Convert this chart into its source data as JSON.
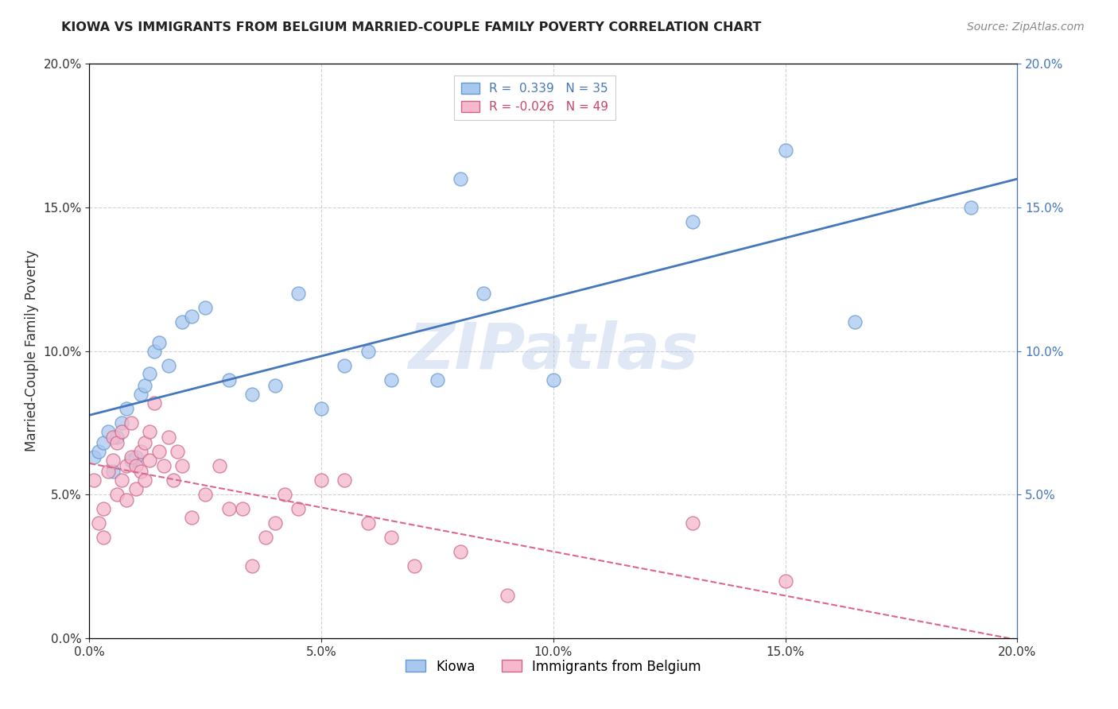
{
  "title": "KIOWA VS IMMIGRANTS FROM BELGIUM MARRIED-COUPLE FAMILY POVERTY CORRELATION CHART",
  "source": "Source: ZipAtlas.com",
  "ylabel": "Married-Couple Family Poverty",
  "watermark": "ZIPatlas",
  "kiowa_R": 0.339,
  "kiowa_N": 35,
  "belgium_R": -0.026,
  "belgium_N": 49,
  "kiowa_color": "#a8c8f0",
  "belgium_color": "#f5b8cc",
  "kiowa_edge_color": "#6699cc",
  "belgium_edge_color": "#cc6688",
  "kiowa_line_color": "#4477bb",
  "belgium_line_color": "#dd6688",
  "background_color": "#ffffff",
  "grid_color": "#cccccc",
  "xlim": [
    0,
    0.2
  ],
  "ylim": [
    0,
    0.2
  ],
  "kiowa_x": [
    0.001,
    0.002,
    0.003,
    0.004,
    0.005,
    0.006,
    0.007,
    0.008,
    0.009,
    0.01,
    0.011,
    0.012,
    0.013,
    0.014,
    0.015,
    0.017,
    0.02,
    0.022,
    0.025,
    0.03,
    0.035,
    0.04,
    0.045,
    0.05,
    0.055,
    0.06,
    0.065,
    0.075,
    0.08,
    0.085,
    0.1,
    0.13,
    0.15,
    0.165,
    0.19
  ],
  "kiowa_y": [
    0.063,
    0.065,
    0.068,
    0.072,
    0.058,
    0.07,
    0.075,
    0.08,
    0.062,
    0.063,
    0.085,
    0.088,
    0.092,
    0.1,
    0.103,
    0.095,
    0.11,
    0.112,
    0.115,
    0.09,
    0.085,
    0.088,
    0.12,
    0.08,
    0.095,
    0.1,
    0.09,
    0.09,
    0.16,
    0.12,
    0.09,
    0.145,
    0.17,
    0.11,
    0.15
  ],
  "belgium_x": [
    0.001,
    0.002,
    0.003,
    0.003,
    0.004,
    0.005,
    0.005,
    0.006,
    0.006,
    0.007,
    0.007,
    0.008,
    0.008,
    0.009,
    0.009,
    0.01,
    0.01,
    0.011,
    0.011,
    0.012,
    0.012,
    0.013,
    0.013,
    0.014,
    0.015,
    0.016,
    0.017,
    0.018,
    0.019,
    0.02,
    0.022,
    0.025,
    0.028,
    0.03,
    0.033,
    0.035,
    0.038,
    0.04,
    0.042,
    0.045,
    0.05,
    0.055,
    0.06,
    0.065,
    0.07,
    0.08,
    0.09,
    0.13,
    0.15
  ],
  "belgium_y": [
    0.055,
    0.04,
    0.035,
    0.045,
    0.058,
    0.062,
    0.07,
    0.05,
    0.068,
    0.055,
    0.072,
    0.048,
    0.06,
    0.063,
    0.075,
    0.052,
    0.06,
    0.058,
    0.065,
    0.055,
    0.068,
    0.072,
    0.062,
    0.082,
    0.065,
    0.06,
    0.07,
    0.055,
    0.065,
    0.06,
    0.042,
    0.05,
    0.06,
    0.045,
    0.045,
    0.025,
    0.035,
    0.04,
    0.05,
    0.045,
    0.055,
    0.055,
    0.04,
    0.035,
    0.025,
    0.03,
    0.015,
    0.04,
    0.02
  ]
}
